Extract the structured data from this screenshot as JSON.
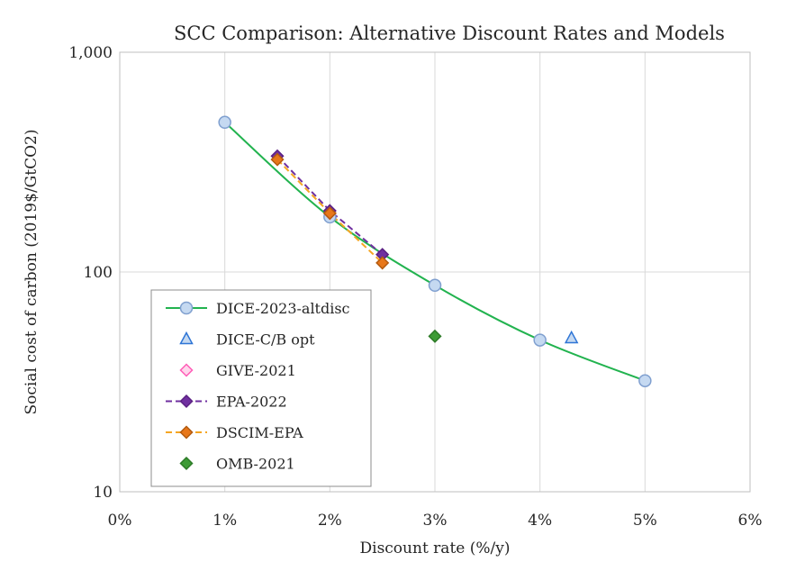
{
  "chart_data": {
    "type": "scatter",
    "title": "SCC Comparison: Alternative Discount Rates and Models",
    "xlabel": "Discount rate (%/y)",
    "ylabel": "Social cost of carbon (2019$/GtCO2)",
    "xlim": [
      0,
      6
    ],
    "ylim": [
      10,
      1000
    ],
    "yscale": "log",
    "x_ticks": [
      0,
      1,
      2,
      3,
      4,
      5,
      6
    ],
    "x_tick_labels": [
      "0%",
      "1%",
      "2%",
      "3%",
      "4%",
      "5%",
      "6%"
    ],
    "y_ticks": [
      10,
      100,
      1000
    ],
    "y_tick_labels": [
      "10",
      "100",
      "1,000"
    ],
    "grid": true,
    "legend_position": "bottom-left",
    "series": [
      {
        "name": "DICE-2023-altdisc",
        "marker": "circle",
        "line": "solid-smooth",
        "color": "#22b34f",
        "marker_fill": "#c5d9f1",
        "marker_stroke": "#7f9fcf",
        "points": [
          [
            1,
            480
          ],
          [
            2,
            178
          ],
          [
            3,
            87
          ],
          [
            4,
            49
          ],
          [
            5,
            32
          ]
        ]
      },
      {
        "name": "DICE-C/B opt",
        "marker": "triangle",
        "line": "none",
        "color": "#2e75d6",
        "marker_fill": "#c5d9f1",
        "marker_stroke": "#2e75d6",
        "points": [
          [
            4.3,
            50
          ]
        ]
      },
      {
        "name": "GIVE-2021",
        "marker": "diamond",
        "line": "none",
        "color": "#ff5db7",
        "marker_fill": "#ffd6ec",
        "marker_stroke": "#ff5db7",
        "points": [
          [
            2,
            185
          ]
        ]
      },
      {
        "name": "EPA-2022",
        "marker": "diamond",
        "line": "dashed",
        "color": "#7030a0",
        "marker_fill": "#7030a0",
        "marker_stroke": "#5b2183",
        "points": [
          [
            1.5,
            337
          ],
          [
            2,
            190
          ],
          [
            2.5,
            120
          ]
        ]
      },
      {
        "name": "DSCIM-EPA",
        "marker": "diamond",
        "line": "dashed",
        "color": "#f5a623",
        "marker_fill": "#e8771a",
        "marker_stroke": "#b35a0f",
        "points": [
          [
            1.5,
            325
          ],
          [
            2,
            185
          ],
          [
            2.5,
            110
          ]
        ]
      },
      {
        "name": "OMB-2021",
        "marker": "diamond",
        "line": "none",
        "color": "#3d9b35",
        "marker_fill": "#3d9b35",
        "marker_stroke": "#2c7a26",
        "points": [
          [
            3,
            51
          ]
        ]
      }
    ]
  }
}
